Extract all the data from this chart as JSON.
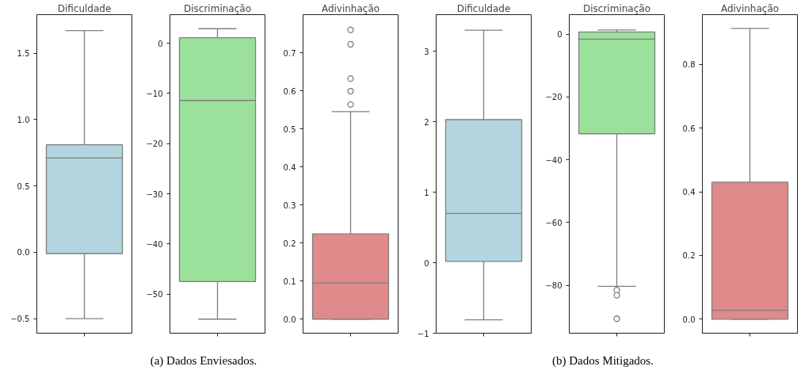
{
  "chart_data": [
    {
      "type": "box",
      "title": "Dificuldade",
      "categories": [
        null
      ],
      "colors": [
        "#b3d5e0"
      ],
      "ylim": [
        -0.61,
        1.79
      ],
      "yticks": [
        {
          "value": -0.5,
          "label": "−0.5"
        },
        {
          "value": 0,
          "label": "0.0"
        },
        {
          "value": 0.5,
          "label": "0.5"
        },
        {
          "value": 1,
          "label": "1.0"
        },
        {
          "value": 1.5,
          "label": "1.5"
        }
      ],
      "grid": false,
      "marker": "circle",
      "boxes": [
        {
          "low": -0.5,
          "q1": -0.01,
          "median": 0.71,
          "q3": 0.81,
          "high": 1.67
        }
      ]
    },
    {
      "type": "box",
      "title": "Discriminação",
      "categories": [
        null
      ],
      "colors": [
        "#9be09b"
      ],
      "ylim": [
        -57.8,
        5.7
      ],
      "yticks": [
        {
          "value": -50,
          "label": "−50"
        },
        {
          "value": -40,
          "label": "−40"
        },
        {
          "value": -30,
          "label": "−30"
        },
        {
          "value": -20,
          "label": "−20"
        },
        {
          "value": -10,
          "label": "−10"
        },
        0
      ],
      "grid": false,
      "marker": "circle",
      "annotations": [
        "(a)  Dados Enviesados."
      ],
      "boxes": [
        {
          "low": -55,
          "q1": -47.5,
          "median": -11.4,
          "q3": 1.1,
          "high": 2.9
        }
      ]
    },
    {
      "type": "box",
      "title": "Adivinhação",
      "categories": [
        null
      ],
      "colors": [
        "#e08a8c"
      ],
      "ylim": [
        -0.037,
        0.8
      ],
      "yticks": [
        {
          "value": 0,
          "label": "0.0"
        },
        0.1,
        0.2,
        0.3,
        0.4,
        0.5,
        0.6,
        0.7
      ],
      "grid": false,
      "marker": "circle",
      "boxes": [
        {
          "low": 0,
          "q1": 0,
          "median": 0.095,
          "q3": 0.224,
          "high": 0.545,
          "outliers": [
            0.564,
            0.599,
            0.632,
            0.722,
            0.76
          ]
        }
      ]
    },
    {
      "type": "box",
      "title": "Dificuldade",
      "categories": [
        null
      ],
      "colors": [
        "#b3d5e0"
      ],
      "ylim": [
        -1.0,
        3.52
      ],
      "yticks": [
        {
          "value": -1,
          "label": "−1"
        },
        0,
        1,
        2,
        3
      ],
      "grid": false,
      "marker": "circle",
      "boxes": [
        {
          "low": -0.81,
          "q1": 0.02,
          "median": 0.7,
          "q3": 2.03,
          "high": 3.3
        }
      ]
    },
    {
      "type": "box",
      "title": "Discriminação",
      "categories": [
        null
      ],
      "colors": [
        "#9be09b"
      ],
      "ylim": [
        -95.2,
        6.2
      ],
      "yticks": [
        {
          "value": -80,
          "label": "−80"
        },
        {
          "value": -60,
          "label": "−60"
        },
        {
          "value": -40,
          "label": "−40"
        },
        {
          "value": -20,
          "label": "−20"
        },
        0
      ],
      "grid": false,
      "marker": "circle",
      "annotations": [
        "(b)  Dados Mitigados."
      ],
      "boxes": [
        {
          "low": -80.3,
          "q1": -31.7,
          "median": -1.6,
          "q3": 0.7,
          "high": 1.3,
          "outliers": [
            -81.5,
            -83.1,
            -90.6
          ]
        }
      ]
    },
    {
      "type": "box",
      "title": "Adivinhação",
      "categories": [
        null
      ],
      "colors": [
        "#e08a8c"
      ],
      "ylim": [
        -0.044,
        0.956
      ],
      "yticks": [
        {
          "value": 0,
          "label": "0.0"
        },
        0.2,
        0.4,
        0.6,
        0.8
      ],
      "grid": false,
      "marker": "circle",
      "boxes": [
        {
          "low": 0,
          "q1": 0,
          "median": 0.028,
          "q3": 0.43,
          "high": 0.913
        }
      ]
    }
  ]
}
